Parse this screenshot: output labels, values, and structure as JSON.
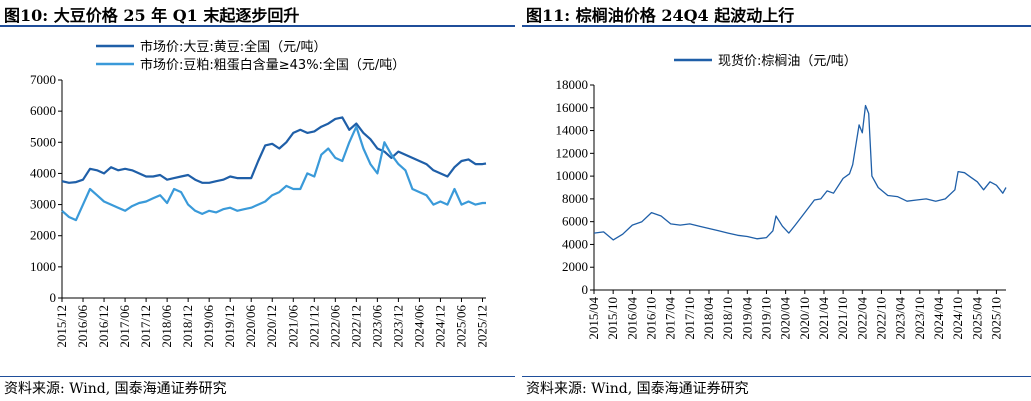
{
  "panels": [
    {
      "title": "图10:  大豆价格 25 年 Q1 末起逐步回升",
      "source": "资料来源:  Wind,  国泰海通证券研究"
    },
    {
      "title": "图11:  棕榈油价格 24Q4 起波动上行",
      "source": "资料来源:  Wind,  国泰海通证券研究"
    }
  ],
  "chart_data": [
    {
      "type": "line",
      "title": "",
      "xlabel": "",
      "ylabel": "",
      "ylim": [
        0,
        7000
      ],
      "yticks": [
        0,
        1000,
        2000,
        3000,
        4000,
        5000,
        6000,
        7000
      ],
      "xticks": [
        "2015/12",
        "2016/06",
        "2016/12",
        "2017/06",
        "2017/12",
        "2018/06",
        "2018/12",
        "2019/06",
        "2019/12",
        "2020/06",
        "2020/12",
        "2021/06",
        "2021/12",
        "2022/06",
        "2022/12",
        "2023/06",
        "2023/12",
        "2024/06",
        "2024/12",
        "2025/06",
        "2025/12"
      ],
      "legend_position": "top",
      "grid": false,
      "x": [
        "2015/12",
        "2016/02",
        "2016/04",
        "2016/06",
        "2016/08",
        "2016/10",
        "2016/12",
        "2017/02",
        "2017/04",
        "2017/06",
        "2017/08",
        "2017/10",
        "2017/12",
        "2018/02",
        "2018/04",
        "2018/06",
        "2018/08",
        "2018/10",
        "2018/12",
        "2019/02",
        "2019/04",
        "2019/06",
        "2019/08",
        "2019/10",
        "2019/12",
        "2020/02",
        "2020/04",
        "2020/06",
        "2020/08",
        "2020/10",
        "2020/12",
        "2021/02",
        "2021/04",
        "2021/06",
        "2021/08",
        "2021/10",
        "2021/12",
        "2022/02",
        "2022/04",
        "2022/06",
        "2022/08",
        "2022/10",
        "2022/12",
        "2023/02",
        "2023/04",
        "2023/06",
        "2023/08",
        "2023/10",
        "2023/12",
        "2024/02",
        "2024/04",
        "2024/06",
        "2024/08",
        "2024/10",
        "2024/12",
        "2025/02",
        "2025/04",
        "2025/06",
        "2025/08",
        "2025/10",
        "2025/12",
        "2026/01"
      ],
      "series": [
        {
          "name": "市场价:大豆:黄豆:全国（元/吨）",
          "color": "#1f5fa8",
          "values": [
            3750,
            3700,
            3720,
            3800,
            4150,
            4100,
            4000,
            4200,
            4100,
            4150,
            4100,
            4000,
            3900,
            3900,
            3950,
            3800,
            3850,
            3900,
            3950,
            3800,
            3700,
            3700,
            3750,
            3800,
            3900,
            3850,
            3850,
            3850,
            4400,
            4900,
            4950,
            4800,
            5000,
            5300,
            5400,
            5300,
            5350,
            5500,
            5600,
            5750,
            5800,
            5400,
            5600,
            5300,
            5100,
            4800,
            4700,
            4500,
            4700,
            4600,
            4500,
            4400,
            4300,
            4100,
            4000,
            3900,
            4200,
            4400,
            4450,
            4300,
            4300,
            4320
          ]
        },
        {
          "name": "市场价:豆粕:粗蛋白含量≥43%:全国（元/吨）",
          "color": "#3a9ad9",
          "values": [
            2800,
            2600,
            2500,
            3000,
            3500,
            3300,
            3100,
            3000,
            2900,
            2800,
            2950,
            3050,
            3100,
            3200,
            3300,
            3050,
            3500,
            3400,
            3000,
            2800,
            2700,
            2800,
            2750,
            2850,
            2900,
            2800,
            2850,
            2900,
            3000,
            3100,
            3300,
            3400,
            3600,
            3500,
            3500,
            4000,
            3900,
            4600,
            4800,
            4500,
            4400,
            5000,
            5500,
            4800,
            4300,
            4000,
            5000,
            4600,
            4300,
            4100,
            3500,
            3400,
            3300,
            3000,
            3100,
            3000,
            3500,
            3000,
            3100,
            3000,
            3050,
            3050
          ]
        }
      ]
    },
    {
      "type": "line",
      "title": "",
      "xlabel": "",
      "ylabel": "",
      "ylim": [
        0,
        18000
      ],
      "yticks": [
        0,
        2000,
        4000,
        6000,
        8000,
        10000,
        12000,
        14000,
        16000,
        18000
      ],
      "xticks": [
        "2015/04",
        "2015/10",
        "2016/04",
        "2016/10",
        "2017/04",
        "2017/10",
        "2018/04",
        "2018/10",
        "2019/04",
        "2019/10",
        "2020/04",
        "2020/10",
        "2021/04",
        "2021/10",
        "2022/04",
        "2022/10",
        "2023/04",
        "2023/10",
        "2024/04",
        "2024/10",
        "2025/04",
        "2025/10"
      ],
      "legend_position": "top",
      "grid": false,
      "x": [
        "2015/04",
        "2015/07",
        "2015/10",
        "2016/01",
        "2016/04",
        "2016/07",
        "2016/10",
        "2017/01",
        "2017/04",
        "2017/07",
        "2017/10",
        "2018/01",
        "2018/04",
        "2018/07",
        "2018/10",
        "2019/01",
        "2019/04",
        "2019/07",
        "2019/10",
        "2019/12",
        "2020/01",
        "2020/03",
        "2020/05",
        "2020/07",
        "2020/10",
        "2021/01",
        "2021/03",
        "2021/05",
        "2021/07",
        "2021/10",
        "2021/12",
        "2022/01",
        "2022/03",
        "2022/04",
        "2022/05",
        "2022/06",
        "2022/07",
        "2022/09",
        "2022/12",
        "2023/03",
        "2023/06",
        "2023/09",
        "2023/12",
        "2024/03",
        "2024/06",
        "2024/09",
        "2024/10",
        "2024/12",
        "2025/02",
        "2025/04",
        "2025/06",
        "2025/08",
        "2025/10",
        "2025/12",
        "2026/01"
      ],
      "series": [
        {
          "name": "现货价:棕榈油（元/吨）",
          "color": "#1f5fa8",
          "values": [
            5000,
            5100,
            4400,
            4900,
            5700,
            6000,
            6800,
            6500,
            5800,
            5700,
            5800,
            5600,
            5400,
            5200,
            5000,
            4800,
            4700,
            4500,
            4600,
            5200,
            6500,
            5600,
            5000,
            5700,
            6800,
            7900,
            8000,
            8700,
            8500,
            9800,
            10200,
            11000,
            14500,
            13800,
            16200,
            15500,
            10000,
            9000,
            8300,
            8200,
            7800,
            7900,
            8000,
            7800,
            8000,
            8800,
            10400,
            10300,
            9900,
            9500,
            8800,
            9500,
            9200,
            8500,
            9000
          ]
        }
      ]
    }
  ]
}
